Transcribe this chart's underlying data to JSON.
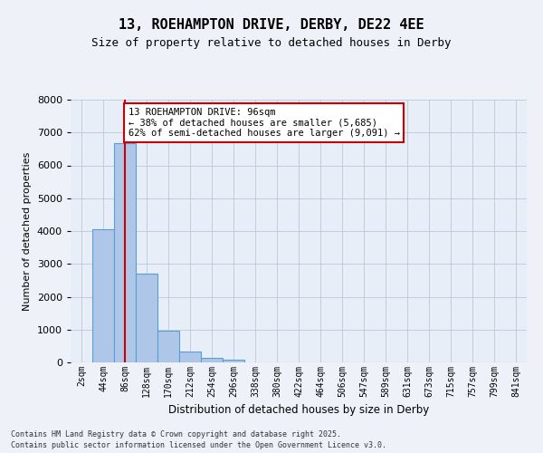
{
  "title_line1": "13, ROEHAMPTON DRIVE, DERBY, DE22 4EE",
  "title_line2": "Size of property relative to detached houses in Derby",
  "xlabel": "Distribution of detached houses by size in Derby",
  "ylabel": "Number of detached properties",
  "bin_labels": [
    "2sqm",
    "44sqm",
    "86sqm",
    "128sqm",
    "170sqm",
    "212sqm",
    "254sqm",
    "296sqm",
    "338sqm",
    "380sqm",
    "422sqm",
    "464sqm",
    "506sqm",
    "547sqm",
    "589sqm",
    "631sqm",
    "673sqm",
    "715sqm",
    "757sqm",
    "799sqm",
    "841sqm"
  ],
  "bar_values": [
    0,
    4050,
    6680,
    2700,
    970,
    330,
    150,
    80,
    0,
    0,
    0,
    0,
    0,
    0,
    0,
    0,
    0,
    0,
    0,
    0,
    0
  ],
  "bar_color": "#aec6e8",
  "bar_edge_color": "#5a9fd4",
  "vline_x": 2,
  "vline_color": "#cc0000",
  "ylim": [
    0,
    8000
  ],
  "yticks": [
    0,
    1000,
    2000,
    3000,
    4000,
    5000,
    6000,
    7000,
    8000
  ],
  "annotation_text": "13 ROEHAMPTON DRIVE: 96sqm\n← 38% of detached houses are smaller (5,685)\n62% of semi-detached houses are larger (9,091) →",
  "annotation_box_color": "#ffffff",
  "annotation_box_edge": "#cc0000",
  "footer_line1": "Contains HM Land Registry data © Crown copyright and database right 2025.",
  "footer_line2": "Contains public sector information licensed under the Open Government Licence v3.0.",
  "fig_bg_color": "#eef2f8",
  "plot_bg_color": "#e8eef8"
}
